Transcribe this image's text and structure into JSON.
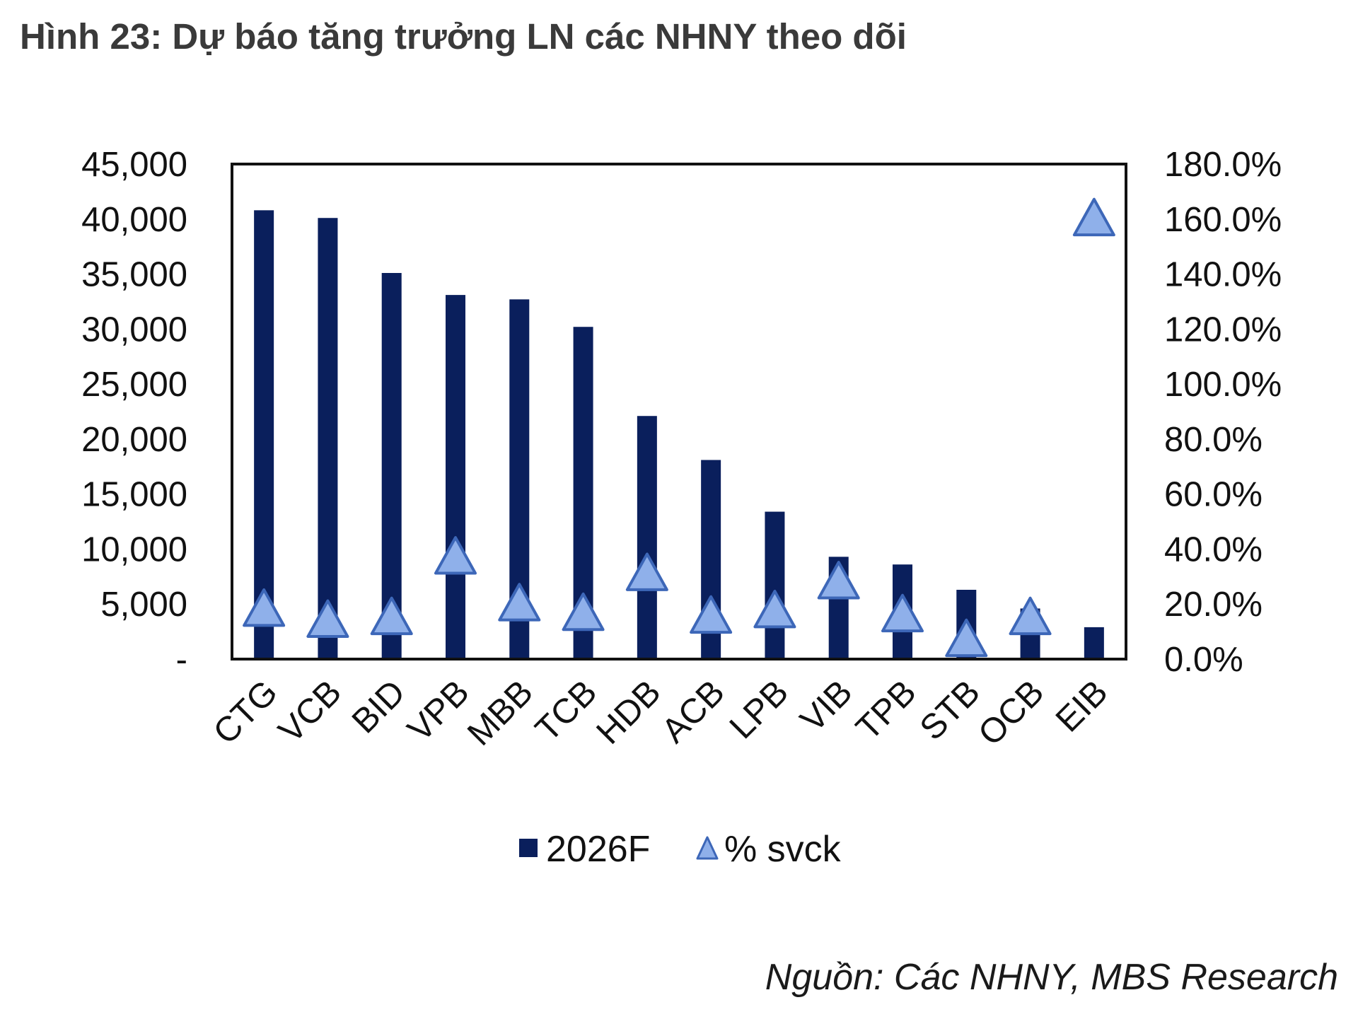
{
  "title": "Hình 23: Dự báo tăng trưởng LN các NHNY theo dõi",
  "source": "Nguồn: Các NHNY, MBS Research",
  "colors": {
    "bar": "#0a1f5c",
    "marker_fill": "#8fb0ea",
    "marker_stroke": "#3d67b8",
    "axis": "#111111"
  },
  "chart_data": {
    "type": "bar",
    "categories": [
      "CTG",
      "VCB",
      "BID",
      "VPB",
      "MBB",
      "TCB",
      "HDB",
      "ACB",
      "LPB",
      "VIB",
      "TPB",
      "STB",
      "OCB",
      "EIB"
    ],
    "series": [
      {
        "name": "2026F",
        "type": "bar",
        "axis": "left",
        "values": [
          40800,
          40100,
          35100,
          33100,
          32700,
          30200,
          22100,
          18100,
          13400,
          9300,
          8600,
          6300,
          4600,
          2900
        ]
      },
      {
        "name": "% svck",
        "type": "scatter",
        "marker": "triangle",
        "axis": "right",
        "values": [
          18.0,
          14.0,
          15.0,
          37.0,
          20.0,
          16.5,
          31.0,
          15.5,
          17.5,
          28.0,
          16.0,
          7.0,
          15.0,
          160.0
        ]
      }
    ],
    "y_left": {
      "ylim": [
        0,
        45000
      ],
      "tick_labels": [
        "-",
        "5,000",
        "10,000",
        "15,000",
        "20,000",
        "25,000",
        "30,000",
        "35,000",
        "40,000",
        "45,000"
      ]
    },
    "y_right": {
      "ylim": [
        0,
        180
      ],
      "tick_labels": [
        "0.0%",
        "20.0%",
        "40.0%",
        "60.0%",
        "80.0%",
        "100.0%",
        "120.0%",
        "140.0%",
        "160.0%",
        "180.0%"
      ]
    },
    "grid": false,
    "legend_position": "bottom"
  }
}
